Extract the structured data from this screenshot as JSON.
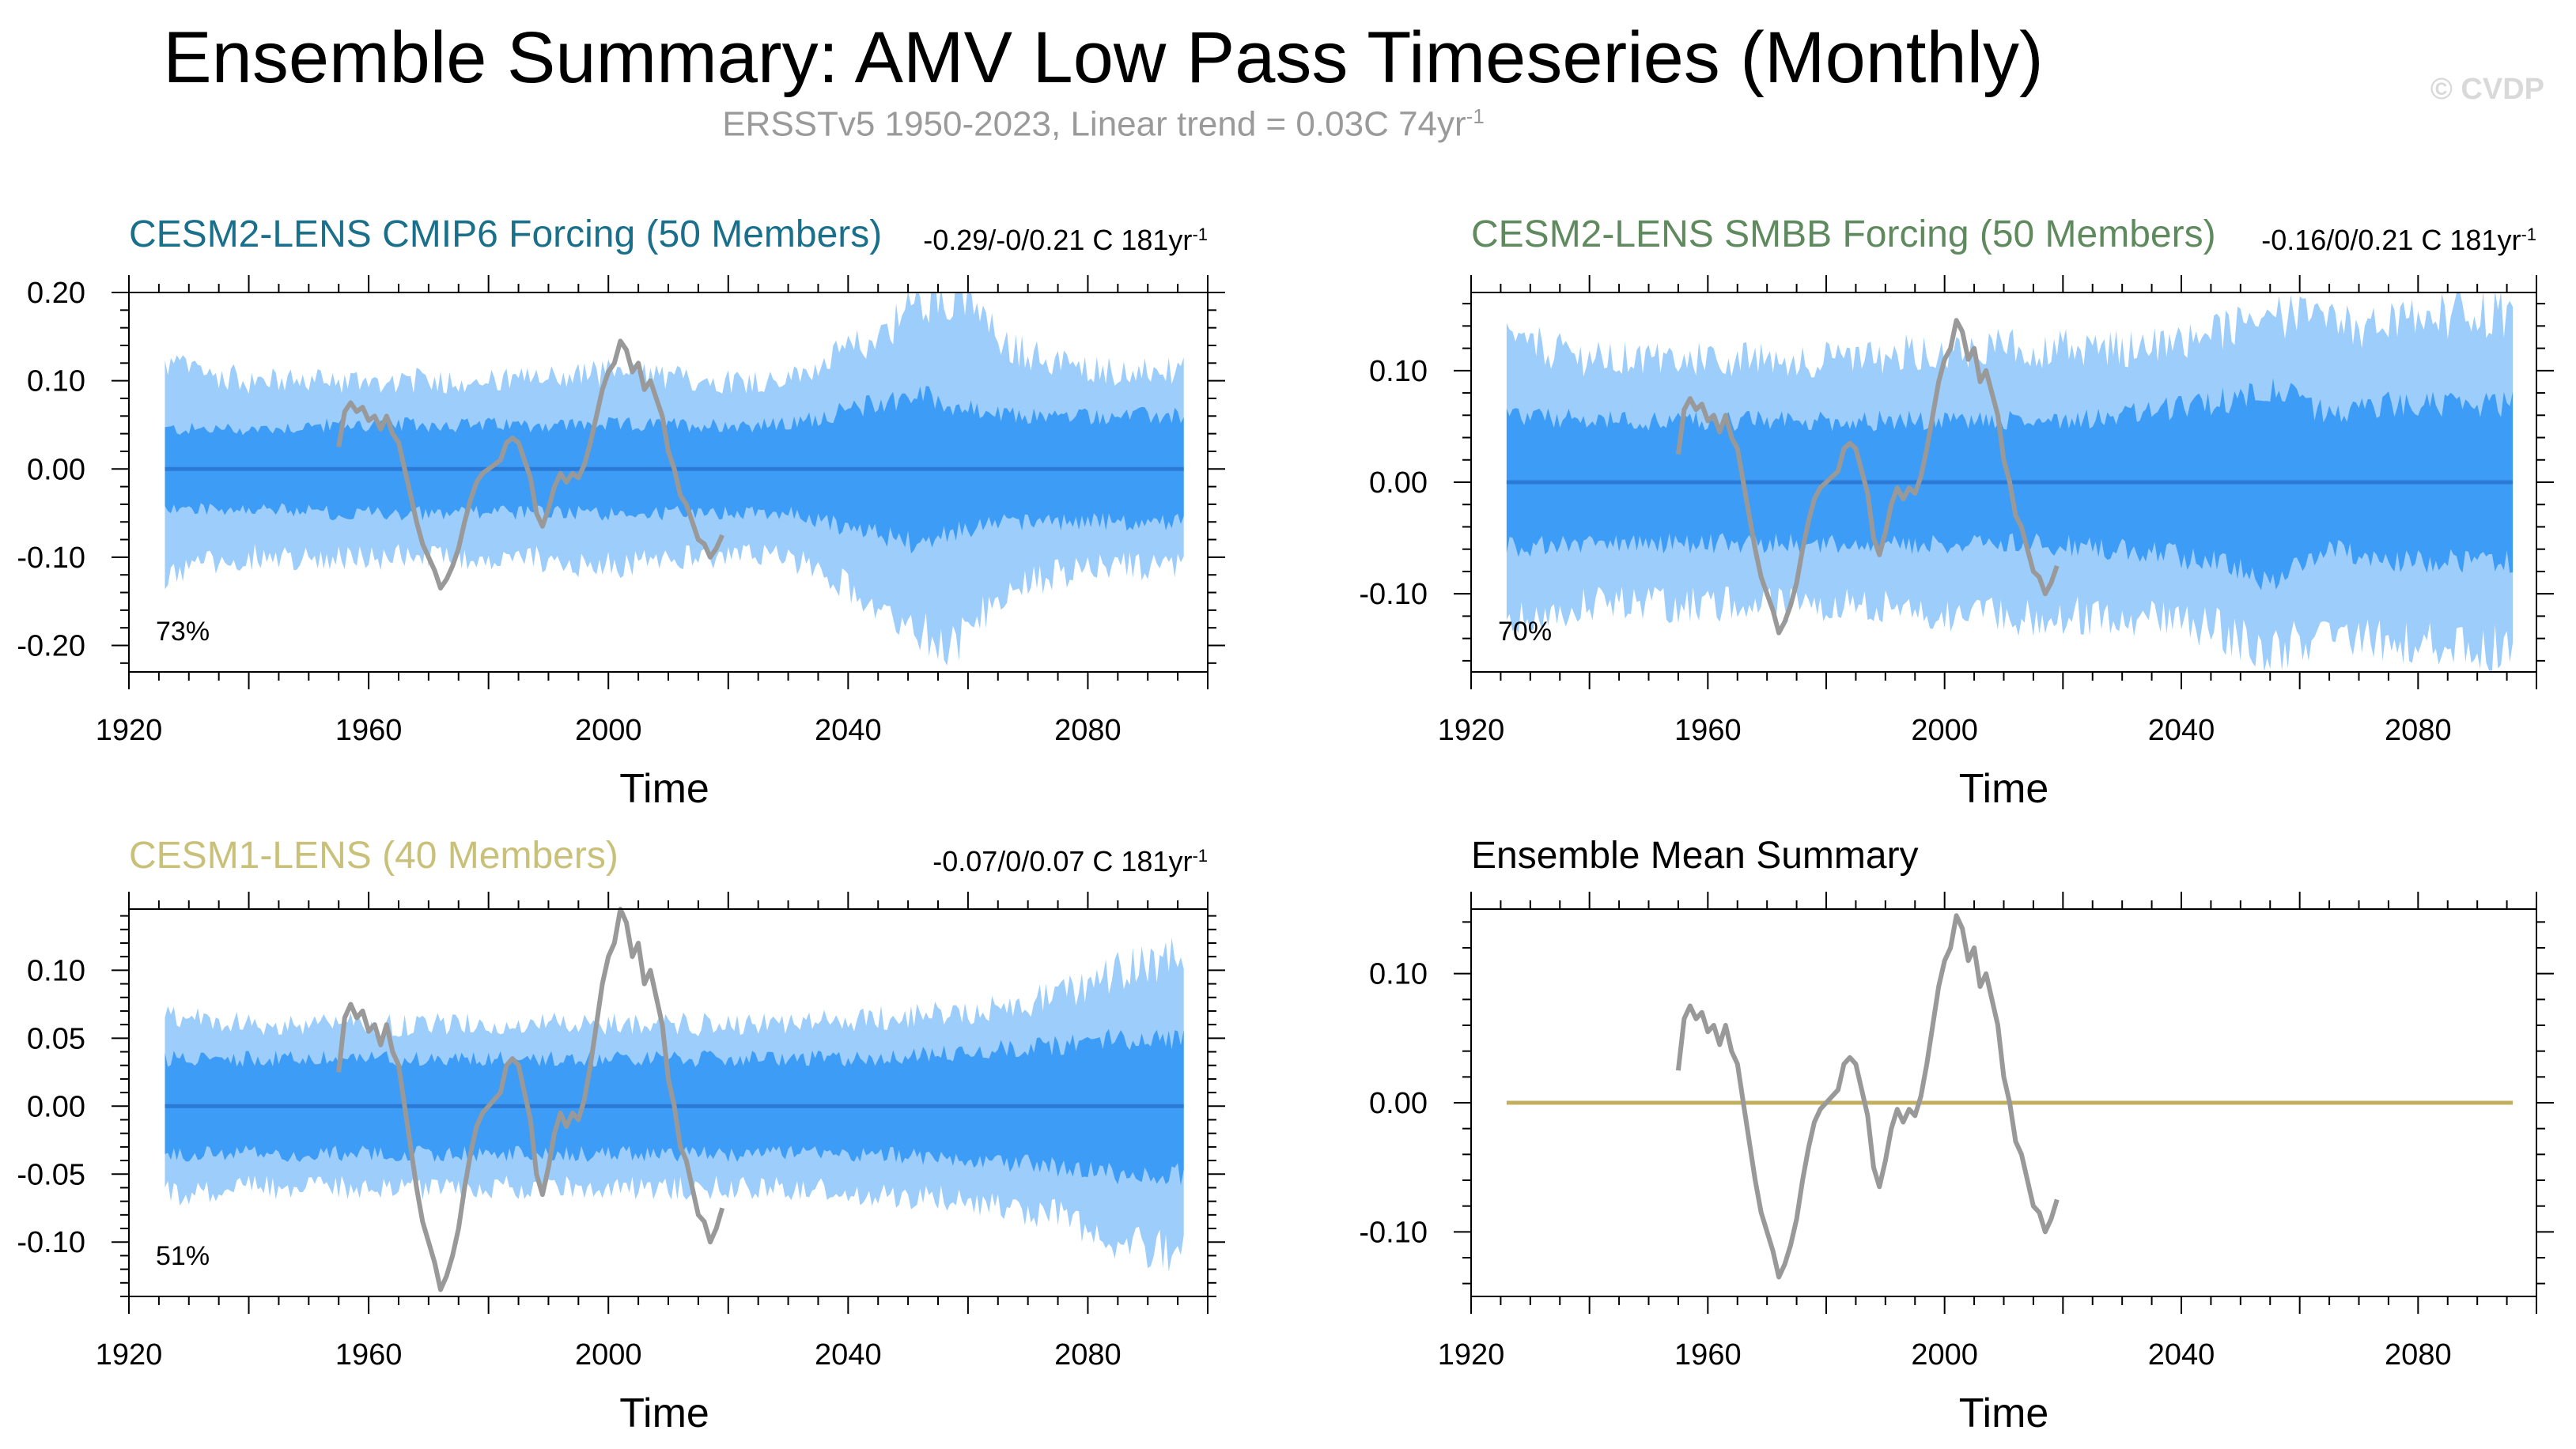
{
  "title": "Ensemble Summary: AMV Low Pass Timeseries (Monthly)",
  "subtitle": {
    "text": "ERSSTv5 1950-2023, Linear trend = 0.03C 74yr",
    "sup": "-1"
  },
  "watermark": "© CVDP",
  "colors": {
    "inner_band": "#3d9cf5",
    "outer_band": "#9dcdfa",
    "mean_line": "#2b7bd6",
    "obs_line": "#999999"
  },
  "chart_data": [
    {
      "id": "cesm2-cmip6",
      "type": "area",
      "title": "CESM2-LENS CMIP6 Forcing (50 Members)",
      "title_color": "#1a6f8a",
      "stat": {
        "text": "-0.29/-0/0.21 C 181yr",
        "sup": "-1"
      },
      "pct": "73%",
      "xlabel": "Time",
      "xlim": [
        1920,
        2100
      ],
      "xticks": [
        1920,
        1960,
        2000,
        2040,
        2080
      ],
      "ylim": [
        -0.23,
        0.2
      ],
      "yticks": [
        0.2,
        0.1,
        0.0,
        -0.1,
        -0.2
      ],
      "ytick_labels": [
        "0.20",
        "0.10",
        "0.00",
        "-0.10",
        "-0.20"
      ],
      "band_anchors": {
        "x": [
          1925,
          1940,
          1955,
          1970,
          1985,
          2000,
          2015,
          2030,
          2045,
          2052,
          2058,
          2066,
          2075,
          2085,
          2096
        ],
        "inner": [
          0.045,
          0.045,
          0.05,
          0.05,
          0.05,
          0.05,
          0.05,
          0.05,
          0.075,
          0.085,
          0.07,
          0.06,
          0.06,
          0.06,
          0.06
        ],
        "outer": [
          0.12,
          0.1,
          0.1,
          0.1,
          0.1,
          0.11,
          0.1,
          0.1,
          0.15,
          0.19,
          0.2,
          0.14,
          0.12,
          0.11,
          0.11
        ]
      },
      "show_band": true,
      "mean_value": 0.0
    },
    {
      "id": "cesm2-smbb",
      "type": "area",
      "title": "CESM2-LENS SMBB Forcing (50 Members)",
      "title_color": "#5e8a5e",
      "stat": {
        "text": "-0.16/0/0.21 C 181yr",
        "sup": "-1"
      },
      "pct": "70%",
      "xlabel": "Time",
      "xlim": [
        1920,
        2100
      ],
      "xticks": [
        1920,
        1960,
        2000,
        2040,
        2080
      ],
      "ylim": [
        -0.17,
        0.17
      ],
      "yticks": [
        0.1,
        0.0,
        -0.1
      ],
      "ytick_labels": [
        "0.10",
        "0.00",
        "-0.10"
      ],
      "band_anchors": {
        "x": [
          1925,
          1940,
          1955,
          1970,
          1985,
          2000,
          2015,
          2030,
          2045,
          2055,
          2065,
          2075,
          2085,
          2096
        ],
        "inner": [
          0.06,
          0.055,
          0.055,
          0.055,
          0.055,
          0.055,
          0.055,
          0.06,
          0.07,
          0.085,
          0.06,
          0.07,
          0.07,
          0.07
        ],
        "outer": [
          0.13,
          0.11,
          0.11,
          0.11,
          0.11,
          0.12,
          0.12,
          0.12,
          0.13,
          0.15,
          0.14,
          0.14,
          0.15,
          0.15
        ]
      },
      "show_band": true,
      "mean_value": 0.0
    },
    {
      "id": "cesm1",
      "type": "area",
      "title": "CESM1-LENS (40 Members)",
      "title_color": "#c9c07a",
      "stat": {
        "text": "-0.07/0/0.07 C 181yr",
        "sup": "-1"
      },
      "pct": "51%",
      "xlabel": "Time",
      "xlim": [
        1920,
        2100
      ],
      "xticks": [
        1920,
        1960,
        2000,
        2040,
        2080
      ],
      "ylim": [
        -0.14,
        0.145
      ],
      "yticks": [
        0.1,
        0.05,
        0.0,
        -0.05,
        -0.1
      ],
      "ytick_labels": [
        "0.10",
        "0.05",
        "0.00",
        "-0.05",
        "-0.10"
      ],
      "band_anchors": {
        "x": [
          1925,
          1940,
          1955,
          1970,
          1985,
          2000,
          2015,
          2030,
          2045,
          2060,
          2075,
          2085,
          2096
        ],
        "inner": [
          0.035,
          0.035,
          0.035,
          0.035,
          0.035,
          0.035,
          0.035,
          0.035,
          0.035,
          0.04,
          0.045,
          0.05,
          0.05
        ],
        "outer": [
          0.065,
          0.06,
          0.06,
          0.06,
          0.06,
          0.06,
          0.06,
          0.06,
          0.065,
          0.07,
          0.08,
          0.1,
          0.11
        ]
      },
      "show_band": true,
      "mean_value": 0.0
    },
    {
      "id": "ensemble-mean",
      "type": "line",
      "title": "Ensemble Mean Summary",
      "title_color": "#000000",
      "stat": null,
      "pct": "",
      "xlabel": "Time",
      "xlim": [
        1920,
        2100
      ],
      "xticks": [
        1920,
        1960,
        2000,
        2040,
        2080
      ],
      "ylim": [
        -0.15,
        0.15
      ],
      "yticks": [
        0.1,
        0.0,
        -0.1
      ],
      "ytick_labels": [
        "0.10",
        "0.00",
        "-0.10"
      ],
      "show_band": false,
      "mean_value": 0.0,
      "mean_color": "#c2b060"
    }
  ],
  "observations": {
    "name": "ERSSTv5",
    "x": [
      1955,
      1956,
      1957,
      1958,
      1959,
      1960,
      1961,
      1962,
      1963,
      1964,
      1965,
      1966,
      1967,
      1968,
      1969,
      1970,
      1971,
      1972,
      1973,
      1974,
      1975,
      1976,
      1977,
      1978,
      1979,
      1980,
      1981,
      1982,
      1983,
      1984,
      1985,
      1986,
      1987,
      1988,
      1989,
      1990,
      1991,
      1992,
      1993,
      1994,
      1995,
      1996,
      1997,
      1998,
      1999,
      2000,
      2001,
      2002,
      2003,
      2004,
      2005,
      2006,
      2007,
      2008,
      2009,
      2010,
      2011,
      2012,
      2013,
      2014,
      2015,
      2016,
      2017,
      2018,
      2019
    ],
    "y": [
      0.025,
      0.065,
      0.075,
      0.065,
      0.07,
      0.055,
      0.06,
      0.045,
      0.06,
      0.04,
      0.03,
      0.0,
      -0.03,
      -0.06,
      -0.085,
      -0.1,
      -0.115,
      -0.135,
      -0.125,
      -0.11,
      -0.09,
      -0.06,
      -0.035,
      -0.015,
      -0.005,
      0.0,
      0.005,
      0.01,
      0.03,
      0.035,
      0.03,
      0.01,
      -0.01,
      -0.05,
      -0.065,
      -0.045,
      -0.02,
      -0.005,
      -0.015,
      -0.005,
      -0.01,
      0.005,
      0.03,
      0.06,
      0.09,
      0.11,
      0.12,
      0.145,
      0.135,
      0.11,
      0.12,
      0.09,
      0.1,
      0.08,
      0.06,
      0.02,
      0.0,
      -0.03,
      -0.04,
      -0.06,
      -0.08,
      -0.085,
      -0.1,
      -0.09,
      -0.075
    ]
  }
}
